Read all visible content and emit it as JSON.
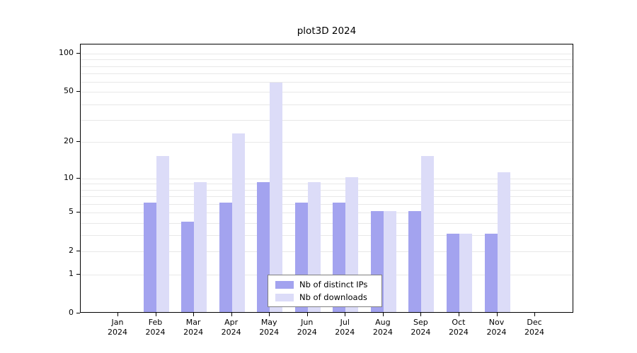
{
  "colors": {
    "distinct_ips": "#a3a3ef",
    "downloads": "#dcdcf8",
    "grid": "#e8e8e8",
    "axis": "#000000",
    "legend_border": "#7f7f7f"
  },
  "chart_data": {
    "type": "bar",
    "title": "plot3D 2024",
    "scale": "log1p",
    "xlabel": "",
    "ylabel": "",
    "year": "2024",
    "categories": [
      "Jan",
      "Feb",
      "Mar",
      "Apr",
      "May",
      "Jun",
      "Jul",
      "Aug",
      "Sep",
      "Oct",
      "Nov",
      "Dec"
    ],
    "series": [
      {
        "name": "Nb of distinct IPs",
        "color": "#a3a3ef",
        "values": [
          0,
          6,
          4,
          6,
          9,
          6,
          6,
          5,
          5,
          3,
          3,
          0
        ]
      },
      {
        "name": "Nb of downloads",
        "color": "#dcdcf8",
        "values": [
          0,
          15,
          9,
          23,
          58,
          9,
          10,
          5,
          15,
          3,
          11,
          0
        ]
      }
    ],
    "yticks": [
      0,
      1,
      2,
      5,
      10,
      20,
      50,
      100
    ],
    "gridlines": [
      1,
      2,
      3,
      4,
      5,
      6,
      7,
      8,
      9,
      10,
      20,
      30,
      40,
      50,
      60,
      70,
      80,
      90,
      100
    ],
    "ylim": [
      0,
      118
    ],
    "grid": "on",
    "legend": {
      "position": "bottom-center-inside",
      "entries": [
        "Nb of distinct IPs",
        "Nb of downloads"
      ]
    }
  }
}
